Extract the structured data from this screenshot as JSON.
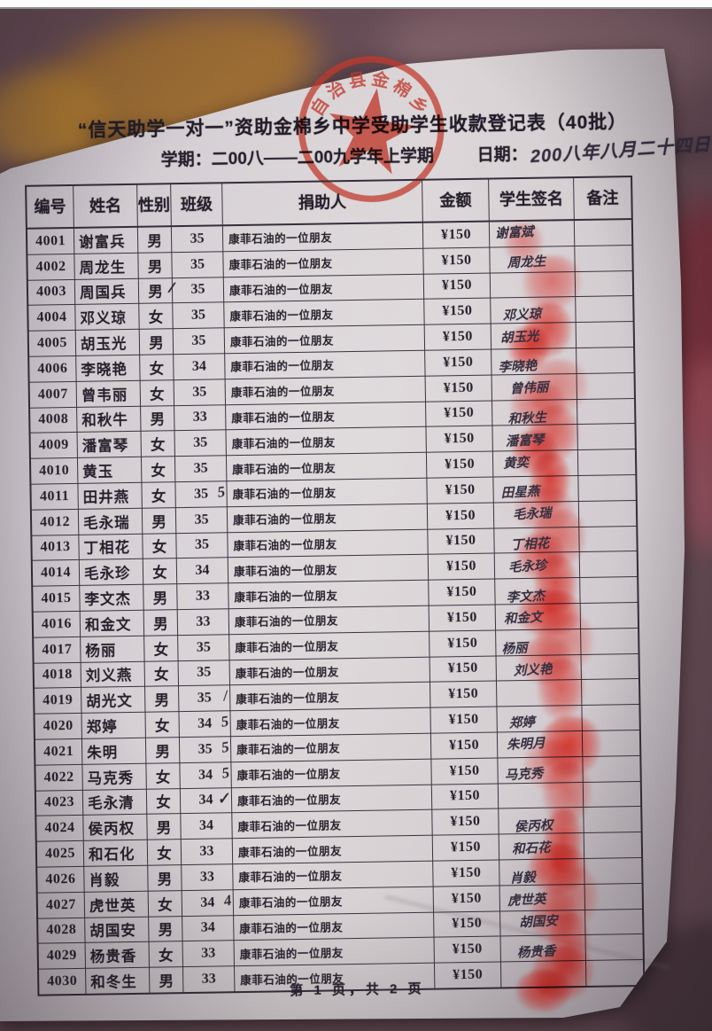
{
  "header": {
    "title": "“信天助学一对一”资助金棉乡中学受助学生收款登记表（40批）",
    "semester": "学期：二00八——二00九学年上学期",
    "date_label": "日期：",
    "date_handwritten": "200八年八月二十四日"
  },
  "stamp": {
    "arc_text": "自治县金棉乡",
    "color": "#bf3a2b"
  },
  "table": {
    "columns": [
      "编号",
      "姓名",
      "性别",
      "班级",
      "捐助人",
      "金额",
      "学生签名",
      "备注"
    ],
    "rows": [
      {
        "id": "4001",
        "name": "谢富兵",
        "gender": "男",
        "gender_mark": "",
        "class": "35",
        "class_mark": "",
        "donor": "康菲石油的一位朋友",
        "amount": "¥150",
        "signature": "谢富斌",
        "fingerprint": true
      },
      {
        "id": "4002",
        "name": "周龙生",
        "gender": "男",
        "gender_mark": "",
        "class": "35",
        "class_mark": "",
        "donor": "康菲石油的一位朋友",
        "amount": "¥150",
        "signature": "周龙生",
        "fingerprint": true
      },
      {
        "id": "4003",
        "name": "周国兵",
        "gender": "男",
        "gender_mark": "/",
        "class": "35",
        "class_mark": "",
        "donor": "康菲石油的一位朋友",
        "amount": "¥150",
        "signature": "",
        "fingerprint": false
      },
      {
        "id": "4004",
        "name": "邓义琼",
        "gender": "女",
        "gender_mark": "",
        "class": "35",
        "class_mark": "",
        "donor": "康菲石油的一位朋友",
        "amount": "¥150",
        "signature": "邓义琼",
        "fingerprint": true
      },
      {
        "id": "4005",
        "name": "胡玉光",
        "gender": "男",
        "gender_mark": "",
        "class": "35",
        "class_mark": "",
        "donor": "康菲石油的一位朋友",
        "amount": "¥150",
        "signature": "胡玉光",
        "fingerprint": true
      },
      {
        "id": "4006",
        "name": "李晓艳",
        "gender": "女",
        "gender_mark": "",
        "class": "34",
        "class_mark": "",
        "donor": "康菲石油的一位朋友",
        "amount": "¥150",
        "signature": "李晓艳",
        "fingerprint": true
      },
      {
        "id": "4007",
        "name": "曾韦丽",
        "gender": "女",
        "gender_mark": "",
        "class": "35",
        "class_mark": "",
        "donor": "康菲石油的一位朋友",
        "amount": "¥150",
        "signature": "曾伟丽",
        "fingerprint": true
      },
      {
        "id": "4008",
        "name": "和秋牛",
        "gender": "男",
        "gender_mark": "",
        "class": "33",
        "class_mark": "",
        "donor": "康菲石油的一位朋友",
        "amount": "¥150",
        "signature": "和秋生",
        "fingerprint": true
      },
      {
        "id": "4009",
        "name": "潘富琴",
        "gender": "女",
        "gender_mark": "",
        "class": "35",
        "class_mark": "",
        "donor": "康菲石油的一位朋友",
        "amount": "¥150",
        "signature": "潘富琴",
        "fingerprint": true
      },
      {
        "id": "4010",
        "name": "黄玉",
        "gender": "女",
        "gender_mark": "",
        "class": "35",
        "class_mark": "",
        "donor": "康菲石油的一位朋友",
        "amount": "¥150",
        "signature": "黄奕",
        "fingerprint": true
      },
      {
        "id": "4011",
        "name": "田井燕",
        "gender": "女",
        "gender_mark": "",
        "class": "35",
        "class_mark": "5",
        "donor": "康菲石油的一位朋友",
        "amount": "¥150",
        "signature": "田星燕",
        "fingerprint": true
      },
      {
        "id": "4012",
        "name": "毛永瑞",
        "gender": "男",
        "gender_mark": "",
        "class": "35",
        "class_mark": "",
        "donor": "康菲石油的一位朋友",
        "amount": "¥150",
        "signature": "毛永瑞",
        "fingerprint": true
      },
      {
        "id": "4013",
        "name": "丁相花",
        "gender": "女",
        "gender_mark": "",
        "class": "35",
        "class_mark": "",
        "donor": "康菲石油的一位朋友",
        "amount": "¥150",
        "signature": "丁相花",
        "fingerprint": true
      },
      {
        "id": "4014",
        "name": "毛永珍",
        "gender": "女",
        "gender_mark": "",
        "class": "34",
        "class_mark": "",
        "donor": "康菲石油的一位朋友",
        "amount": "¥150",
        "signature": "毛永珍",
        "fingerprint": true
      },
      {
        "id": "4015",
        "name": "李文杰",
        "gender": "男",
        "gender_mark": "",
        "class": "33",
        "class_mark": "",
        "donor": "康菲石油的一位朋友",
        "amount": "¥150",
        "signature": "李文杰",
        "fingerprint": true
      },
      {
        "id": "4016",
        "name": "和金文",
        "gender": "男",
        "gender_mark": "",
        "class": "33",
        "class_mark": "",
        "donor": "康菲石油的一位朋友",
        "amount": "¥150",
        "signature": "和金文",
        "fingerprint": true
      },
      {
        "id": "4017",
        "name": "杨丽",
        "gender": "女",
        "gender_mark": "",
        "class": "35",
        "class_mark": "",
        "donor": "康菲石油的一位朋友",
        "amount": "¥150",
        "signature": "杨丽",
        "fingerprint": true
      },
      {
        "id": "4018",
        "name": "刘义燕",
        "gender": "女",
        "gender_mark": "",
        "class": "35",
        "class_mark": "",
        "donor": "康菲石油的一位朋友",
        "amount": "¥150",
        "signature": "刘义艳",
        "fingerprint": true
      },
      {
        "id": "4019",
        "name": "胡光文",
        "gender": "男",
        "gender_mark": "",
        "class": "35",
        "class_mark": "/",
        "donor": "康菲石油的一位朋友",
        "amount": "¥150",
        "signature": "",
        "fingerprint": false
      },
      {
        "id": "4020",
        "name": "郑婷",
        "gender": "女",
        "gender_mark": "",
        "class": "34",
        "class_mark": "5",
        "donor": "康菲石油的一位朋友",
        "amount": "¥150",
        "signature": "郑婷",
        "fingerprint": true
      },
      {
        "id": "4021",
        "name": "朱明",
        "gender": "男",
        "gender_mark": "",
        "class": "35",
        "class_mark": "5",
        "donor": "康菲石油的一位朋友",
        "amount": "¥150",
        "signature": "朱明月",
        "fingerprint": true
      },
      {
        "id": "4022",
        "name": "马克秀",
        "gender": "女",
        "gender_mark": "",
        "class": "34",
        "class_mark": "5",
        "donor": "康菲石油的一位朋友",
        "amount": "¥150",
        "signature": "马克秀",
        "fingerprint": true
      },
      {
        "id": "4023",
        "name": "毛永清",
        "gender": "女",
        "gender_mark": "",
        "class": "34",
        "class_mark": "✓",
        "donor": "康菲石油的一位朋友",
        "amount": "¥150",
        "signature": "",
        "fingerprint": false
      },
      {
        "id": "4024",
        "name": "侯丙权",
        "gender": "男",
        "gender_mark": "",
        "class": "34",
        "class_mark": "",
        "donor": "康菲石油的一位朋友",
        "amount": "¥150",
        "signature": "侯丙权",
        "fingerprint": true
      },
      {
        "id": "4025",
        "name": "和石化",
        "gender": "女",
        "gender_mark": "",
        "class": "33",
        "class_mark": "",
        "donor": "康菲石油的一位朋友",
        "amount": "¥150",
        "signature": "和石花",
        "fingerprint": true
      },
      {
        "id": "4026",
        "name": "肖毅",
        "gender": "男",
        "gender_mark": "",
        "class": "33",
        "class_mark": "",
        "donor": "康菲石油的一位朋友",
        "amount": "¥150",
        "signature": "肖毅",
        "fingerprint": true
      },
      {
        "id": "4027",
        "name": "虎世英",
        "gender": "女",
        "gender_mark": "",
        "class": "34",
        "class_mark": "4",
        "donor": "康菲石油的一位朋友",
        "amount": "¥150",
        "signature": "虎世英",
        "fingerprint": true
      },
      {
        "id": "4028",
        "name": "胡国安",
        "gender": "男",
        "gender_mark": "",
        "class": "34",
        "class_mark": "",
        "donor": "康菲石油的一位朋友",
        "amount": "¥150",
        "signature": "胡国安",
        "fingerprint": true
      },
      {
        "id": "4029",
        "name": "杨贵香",
        "gender": "女",
        "gender_mark": "",
        "class": "33",
        "class_mark": "",
        "donor": "康菲石油的一位朋友",
        "amount": "¥150",
        "signature": "杨贵香",
        "fingerprint": true
      },
      {
        "id": "4030",
        "name": "和冬生",
        "gender": "男",
        "gender_mark": "",
        "class": "33",
        "class_mark": "",
        "donor": "康菲石油的一位朋友",
        "amount": "¥150",
        "signature": "",
        "fingerprint": true
      }
    ]
  },
  "footer": {
    "page_text": "第 1 页，共 2 页"
  }
}
